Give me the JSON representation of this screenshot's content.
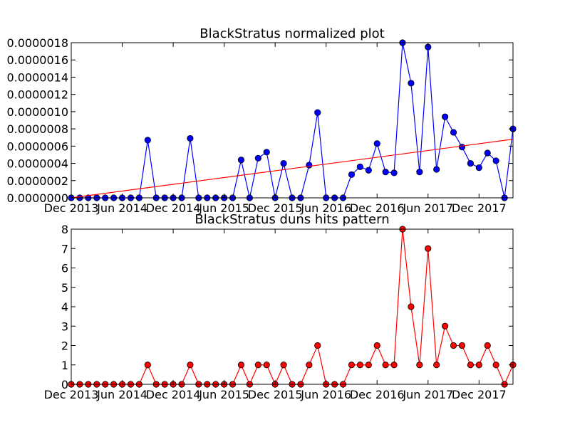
{
  "chart_data": [
    {
      "type": "line",
      "title": "BlackStratus normalized plot",
      "xlabel": "",
      "ylabel": "",
      "x_tick_labels": [
        "Dec 2013",
        "Jun 2014",
        "Dec 2014",
        "Jun 2015",
        "Dec 2015",
        "Jun 2016",
        "Dec 2016",
        "Jun 2017",
        "Dec 2017"
      ],
      "x_tick_index": [
        0,
        6,
        12,
        18,
        24,
        30,
        36,
        42,
        48
      ],
      "y_tick_labels": [
        "0.0000000",
        "0.0000002",
        "0.0000004",
        "0.0000006",
        "0.0000008",
        "0.0000010",
        "0.0000012",
        "0.0000014",
        "0.0000016",
        "0.0000018"
      ],
      "ylim": [
        0,
        1.8e-06
      ],
      "grid": false,
      "series": [
        {
          "color": "#0000ff",
          "marker": "circle",
          "values": [
            0,
            0,
            0,
            0,
            0,
            0,
            0,
            0,
            0,
            6.7e-07,
            0,
            0,
            0,
            0,
            6.9e-07,
            0,
            0,
            0,
            0,
            0,
            4.4e-07,
            0,
            4.6e-07,
            5.3e-07,
            0,
            4e-07,
            0,
            0,
            3.8e-07,
            9.9e-07,
            0,
            0,
            0,
            2.7e-07,
            3.6e-07,
            3.2e-07,
            6.3e-07,
            3e-07,
            2.9e-07,
            1.8e-06,
            1.33e-06,
            3e-07,
            1.75e-06,
            3.3e-07,
            9.4e-07,
            7.6e-07,
            5.9e-07,
            4e-07,
            3.5e-07,
            5.2e-07,
            4.3e-07,
            0,
            8e-07
          ]
        },
        {
          "color": "#ff0000",
          "marker": "none",
          "values_start_end": [
            0,
            6.8e-07
          ]
        }
      ]
    },
    {
      "type": "line",
      "title": "BlackStratus duns hits pattern",
      "xlabel": "",
      "ylabel": "",
      "x_tick_labels": [
        "Dec 2013",
        "Jun 2014",
        "Dec 2014",
        "Jun 2015",
        "Dec 2015",
        "Jun 2016",
        "Dec 2016",
        "Jun 2017",
        "Dec 2017"
      ],
      "x_tick_index": [
        0,
        6,
        12,
        18,
        24,
        30,
        36,
        42,
        48
      ],
      "y_tick_labels": [
        "0",
        "1",
        "2",
        "3",
        "4",
        "5",
        "6",
        "7",
        "8"
      ],
      "ylim": [
        0,
        8
      ],
      "grid": false,
      "series": [
        {
          "color": "#ff0000",
          "marker": "circle",
          "values": [
            0,
            0,
            0,
            0,
            0,
            0,
            0,
            0,
            0,
            1,
            0,
            0,
            0,
            0,
            1,
            0,
            0,
            0,
            0,
            0,
            1,
            0,
            1,
            1,
            0,
            1,
            0,
            0,
            1,
            2,
            0,
            0,
            0,
            1,
            1,
            1,
            2,
            1,
            1,
            8,
            4,
            1,
            7,
            1,
            3,
            2,
            2,
            1,
            1,
            2,
            1,
            0,
            1
          ]
        }
      ]
    }
  ]
}
